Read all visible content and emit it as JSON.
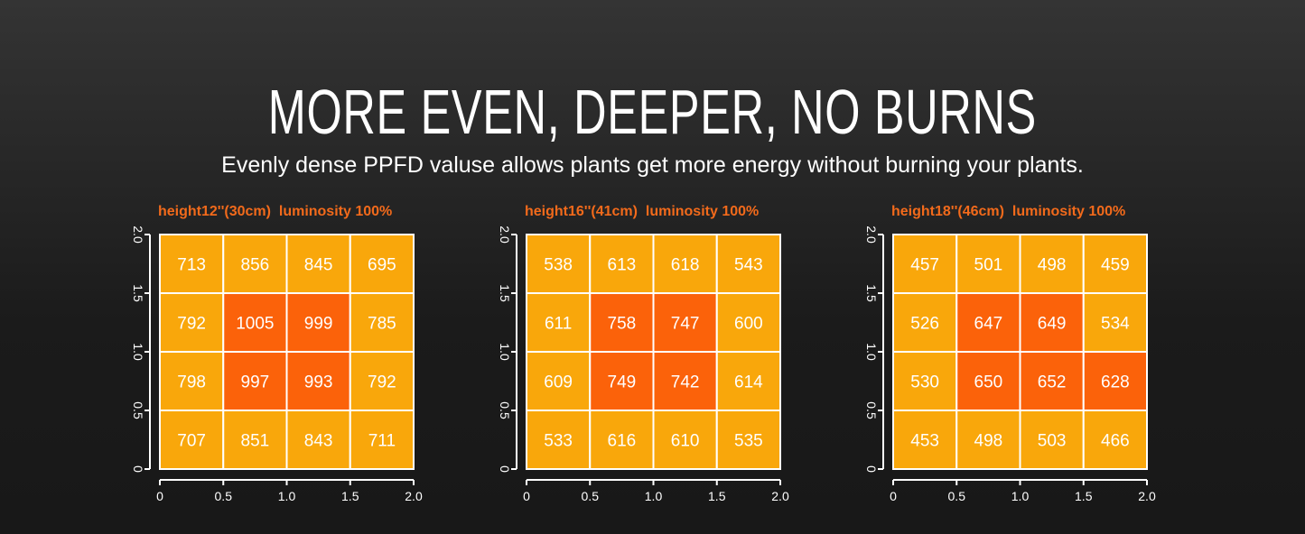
{
  "header": {
    "title": "MORE EVEN, DEEPER, NO BURNS",
    "subtitle": "Evenly dense PPFD valuse allows plants get more energy without burning your plants."
  },
  "colors": {
    "low": "#f9a70b",
    "high": "#fb620a",
    "grid": "#ffffff",
    "title": "#f26a1b"
  },
  "chart_data": [
    {
      "type": "heatmap",
      "title": "height12''(30cm)  luminosity 100%",
      "xlim": [
        0,
        2.0
      ],
      "ylim": [
        0,
        2.0
      ],
      "xticks": [
        "0",
        "0.5",
        "1.0",
        "1.5",
        "2.0"
      ],
      "yticks": [
        "0",
        "0.5",
        "1.0",
        "1.5",
        "2.0"
      ],
      "rows_top_to_bottom": [
        [
          713,
          856,
          845,
          695
        ],
        [
          792,
          1005,
          999,
          785
        ],
        [
          798,
          997,
          993,
          792
        ],
        [
          707,
          851,
          843,
          711
        ]
      ]
    },
    {
      "type": "heatmap",
      "title": "height16''(41cm)  luminosity 100%",
      "xlim": [
        0,
        2.0
      ],
      "ylim": [
        0,
        2.0
      ],
      "xticks": [
        "0",
        "0.5",
        "1.0",
        "1.5",
        "2.0"
      ],
      "yticks": [
        "0",
        "0.5",
        "1.0",
        "1.5",
        "2.0"
      ],
      "rows_top_to_bottom": [
        [
          538,
          613,
          618,
          543
        ],
        [
          611,
          758,
          747,
          600
        ],
        [
          609,
          749,
          742,
          614
        ],
        [
          533,
          616,
          610,
          535
        ]
      ]
    },
    {
      "type": "heatmap",
      "title": "height18''(46cm)  luminosity 100%",
      "xlim": [
        0,
        2.0
      ],
      "ylim": [
        0,
        2.0
      ],
      "xticks": [
        "0",
        "0.5",
        "1.0",
        "1.5",
        "2.0"
      ],
      "yticks": [
        "0",
        "0.5",
        "1.0",
        "1.5",
        "2.0"
      ],
      "rows_top_to_bottom": [
        [
          457,
          501,
          498,
          459
        ],
        [
          526,
          647,
          649,
          534
        ],
        [
          530,
          650,
          652,
          628
        ],
        [
          453,
          498,
          503,
          466
        ]
      ]
    }
  ]
}
